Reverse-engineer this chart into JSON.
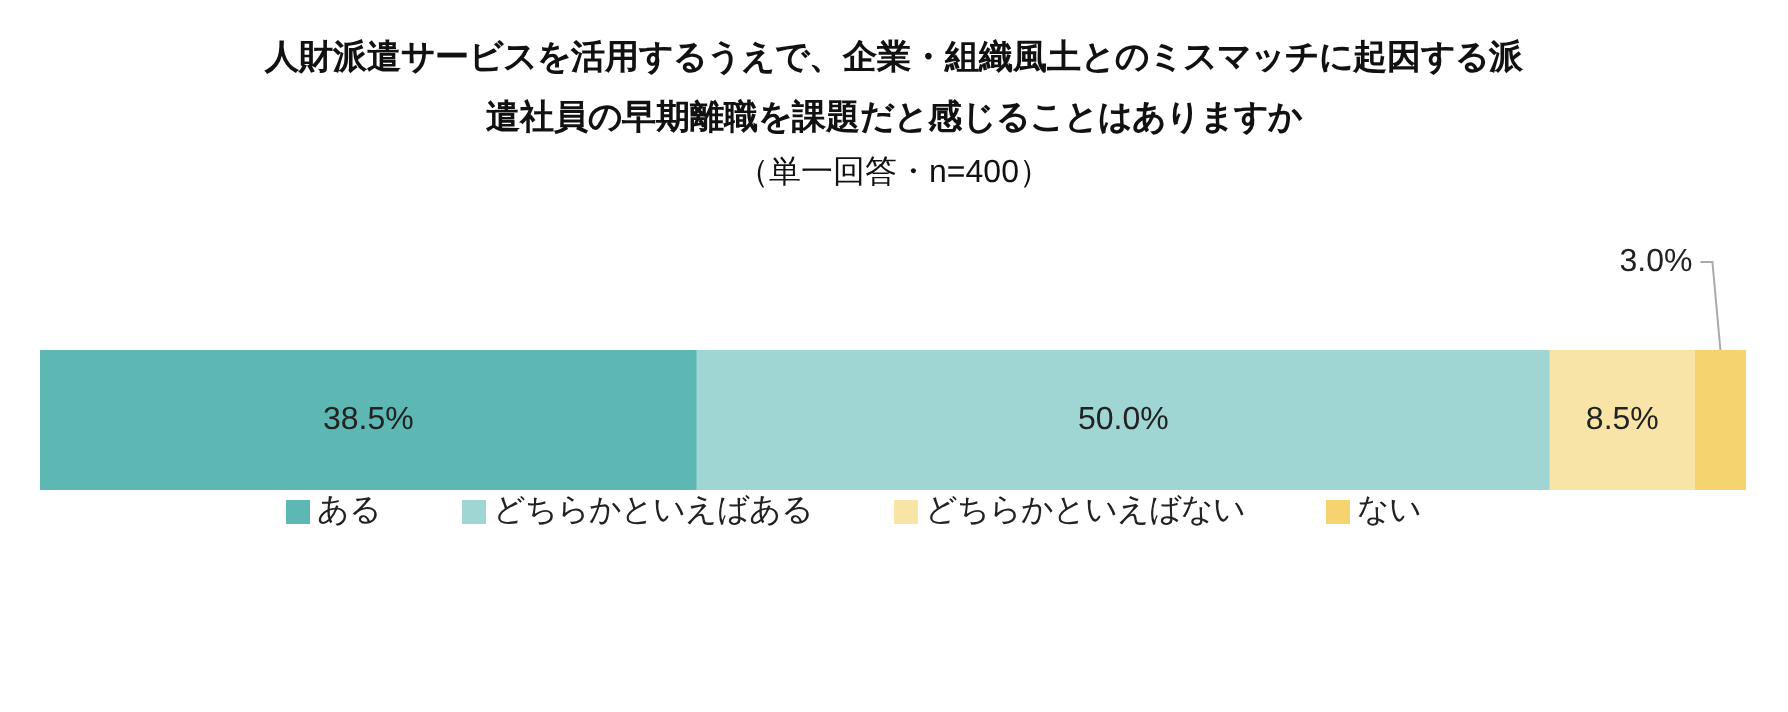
{
  "chart_data": {
    "type": "bar",
    "orientation": "horizontal",
    "stacked": true,
    "title": "人財派遣サービスを活用するうえで、企業・組織風土とのミスマッチに起因する派遣社員の早期離職を課題だと感じることはありますか",
    "subtitle": "（単一回答・n=400）",
    "categories": [
      null
    ],
    "series": [
      {
        "name": "ある",
        "color": "#5db8b4",
        "values": [
          38.5
        ],
        "value_labels": [
          "38.5%"
        ]
      },
      {
        "name": "どちらかといえばある",
        "color": "#9fd5d2",
        "values": [
          50.0
        ],
        "value_labels": [
          "50.0%"
        ]
      },
      {
        "name": "どちらかといえばない",
        "color": "#f9e4a7",
        "values": [
          8.5
        ],
        "value_labels": [
          "8.5%"
        ]
      },
      {
        "name": "ない",
        "color": "#f5d36e",
        "values": [
          3.0
        ],
        "value_labels": [
          "3.0%"
        ]
      }
    ],
    "tick_labels": false,
    "legend": "bottom",
    "grid": false
  }
}
